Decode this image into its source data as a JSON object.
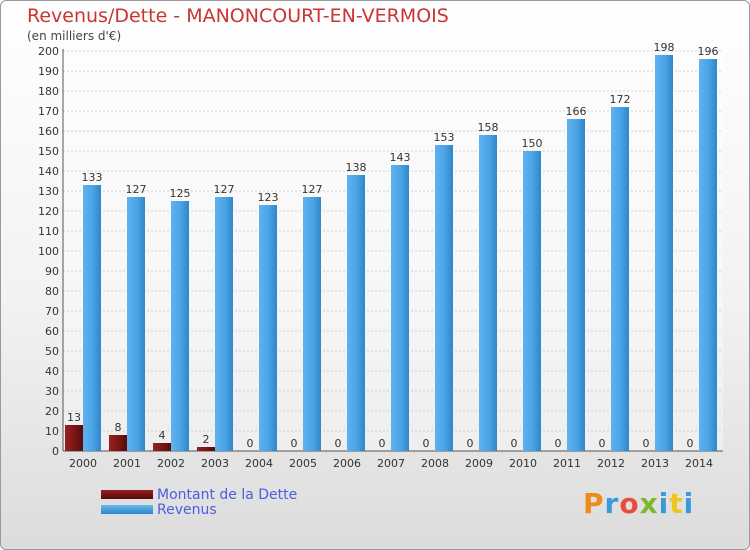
{
  "chart_data": {
    "type": "bar",
    "title": "Revenus/Dette - MANONCOURT-EN-VERMOIS",
    "subtitle": "(en milliers d'€)",
    "categories": [
      "2000",
      "2001",
      "2002",
      "2003",
      "2004",
      "2005",
      "2006",
      "2007",
      "2008",
      "2009",
      "2010",
      "2011",
      "2012",
      "2013",
      "2014"
    ],
    "series": [
      {
        "name": "Montant de la Dette",
        "color": "#7a1414",
        "values": [
          13,
          8,
          4,
          2,
          0,
          0,
          0,
          0,
          0,
          0,
          0,
          0,
          0,
          0,
          0
        ]
      },
      {
        "name": "Revenus",
        "color": "#4aa3e6",
        "values": [
          133,
          127,
          125,
          127,
          123,
          127,
          138,
          143,
          153,
          158,
          150,
          166,
          172,
          198,
          196
        ]
      }
    ],
    "ylim": [
      0,
      200
    ],
    "yticks": [
      0,
      10,
      20,
      30,
      40,
      50,
      60,
      70,
      80,
      90,
      100,
      110,
      120,
      130,
      140,
      150,
      160,
      170,
      180,
      190,
      200
    ],
    "grid": true,
    "legend_position": "bottom-left"
  },
  "logo": {
    "text": "Proxiti"
  }
}
